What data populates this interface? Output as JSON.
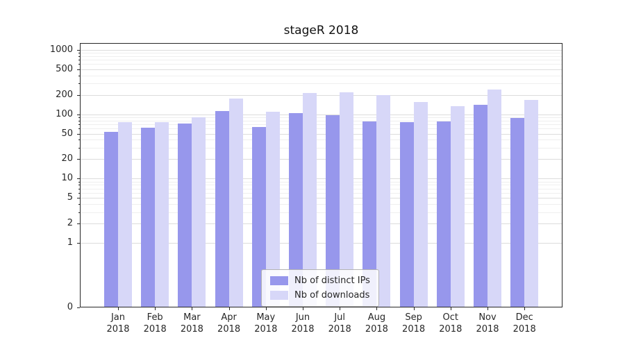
{
  "title": "stageR 2018",
  "legend": {
    "items": [
      {
        "label": "Nb of distinct IPs",
        "color": "#9797ec"
      },
      {
        "label": "Nb of downloads",
        "color": "#d7d7f8"
      }
    ]
  },
  "chart_data": {
    "type": "bar",
    "title": "stageR 2018",
    "year": "2018",
    "months": [
      "Jan",
      "Feb",
      "Mar",
      "Apr",
      "May",
      "Jun",
      "Jul",
      "Aug",
      "Sep",
      "Oct",
      "Nov",
      "Dec"
    ],
    "categories": [
      "Jan 2018",
      "Feb 2018",
      "Mar 2018",
      "Apr 2018",
      "May 2018",
      "Jun 2018",
      "Jul 2018",
      "Aug 2018",
      "Sep 2018",
      "Oct 2018",
      "Nov 2018",
      "Dec 2018"
    ],
    "series": [
      {
        "name": "Nb of distinct IPs",
        "color": "#9797ec",
        "values": [
          53,
          62,
          72,
          113,
          64,
          105,
          97,
          78,
          75,
          77,
          140,
          87
        ]
      },
      {
        "name": "Nb of downloads",
        "color": "#d7d7f8",
        "values": [
          75,
          76,
          90,
          175,
          110,
          215,
          220,
          200,
          155,
          135,
          240,
          165
        ]
      }
    ],
    "yaxis": {
      "scale": "symlog",
      "ticks": [
        0,
        1,
        2,
        5,
        10,
        20,
        50,
        100,
        200,
        500,
        1000
      ],
      "minor_gridlines": [
        3,
        4,
        6,
        7,
        8,
        9,
        30,
        40,
        60,
        70,
        80,
        90,
        300,
        400,
        600,
        700,
        800,
        900
      ],
      "ylim": [
        0,
        1280
      ],
      "grid": true
    },
    "xlabel": "",
    "ylabel": "",
    "legend_position": "lower center"
  }
}
